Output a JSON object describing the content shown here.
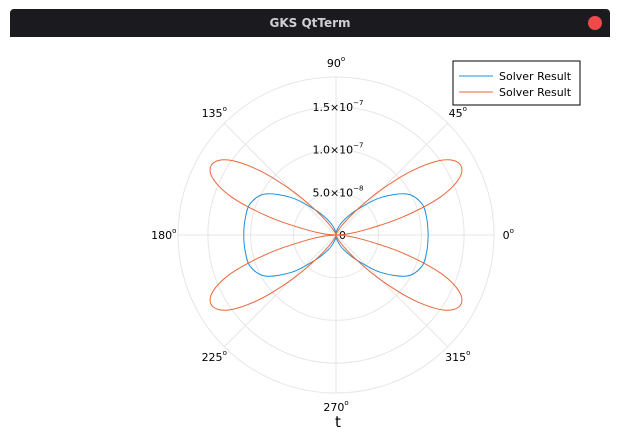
{
  "window": {
    "title": "GKS QtTerm"
  },
  "chart_data": {
    "type": "polar-line",
    "theta_ticks": [
      {
        "deg": 0,
        "label": "0"
      },
      {
        "deg": 45,
        "label": "45"
      },
      {
        "deg": 90,
        "label": "90"
      },
      {
        "deg": 135,
        "label": "135"
      },
      {
        "deg": 180,
        "label": "180"
      },
      {
        "deg": 225,
        "label": "225"
      },
      {
        "deg": 270,
        "label": "270"
      },
      {
        "deg": 315,
        "label": "315"
      }
    ],
    "degree_symbol": "o",
    "r_ticks": [
      {
        "value": 0,
        "mantissa": "0",
        "exponent": ""
      },
      {
        "value": 5e-08,
        "mantissa": "5.0×10",
        "exponent": "−8"
      },
      {
        "value": 1e-07,
        "mantissa": "1.0×10",
        "exponent": "−7"
      },
      {
        "value": 1.5e-07,
        "mantissa": "1.5×10",
        "exponent": "−7"
      }
    ],
    "rlim": [
      0,
      1.85e-07
    ],
    "xlabel": "t",
    "legend_position": "top-right",
    "series": [
      {
        "name": "Solver Result",
        "color": "#1e90d8",
        "theta": [
          0,
          10,
          20,
          30,
          40,
          50,
          60,
          70,
          80,
          90,
          100,
          110,
          120,
          130,
          140,
          150,
          160,
          170,
          180,
          190,
          200,
          210,
          220,
          230,
          240,
          250,
          260,
          270,
          280,
          290,
          300,
          310,
          320,
          330,
          340,
          350,
          360
        ],
        "r": [
          1.08e-07,
          1.08e-07,
          1.07e-07,
          9.6e-08,
          6.8e-08,
          3.9e-08,
          2.2e-08,
          1.2e-08,
          5e-09,
          1e-09,
          5e-09,
          1.2e-08,
          2.2e-08,
          3.9e-08,
          6.8e-08,
          9.6e-08,
          1.07e-07,
          1.08e-07,
          1.08e-07,
          1.08e-07,
          1.07e-07,
          9.6e-08,
          6.8e-08,
          3.9e-08,
          2.2e-08,
          1.2e-08,
          5e-09,
          1e-09,
          5e-09,
          1.2e-08,
          2.2e-08,
          3.9e-08,
          6.8e-08,
          9.6e-08,
          1.07e-07,
          1.08e-07,
          1.08e-07
        ]
      },
      {
        "name": "Solver Result",
        "color": "#e8683a",
        "theta": [
          0,
          5,
          10,
          15,
          20,
          25,
          30,
          35,
          40,
          45,
          50,
          55,
          60,
          70,
          80,
          90,
          100,
          110,
          120,
          125,
          130,
          135,
          140,
          145,
          150,
          155,
          160,
          165,
          170,
          175,
          180,
          185,
          190,
          195,
          200,
          205,
          210,
          215,
          220,
          225,
          230,
          235,
          240,
          250,
          260,
          270,
          280,
          290,
          300,
          305,
          310,
          315,
          320,
          325,
          330,
          335,
          340,
          345,
          350,
          355,
          360
        ],
        "r": [
          0,
          1.2e-08,
          3.5e-08,
          8e-08,
          1.3e-07,
          1.6e-07,
          1.67e-07,
          1.53e-07,
          1.18e-07,
          7.5e-08,
          4e-08,
          2e-08,
          1e-08,
          3e-09,
          1e-09,
          0,
          1e-09,
          3e-09,
          1e-08,
          2e-08,
          4e-08,
          7.5e-08,
          1.18e-07,
          1.53e-07,
          1.67e-07,
          1.6e-07,
          1.3e-07,
          8e-08,
          3.5e-08,
          1.2e-08,
          0,
          1.2e-08,
          3.5e-08,
          8e-08,
          1.3e-07,
          1.6e-07,
          1.67e-07,
          1.53e-07,
          1.18e-07,
          7.5e-08,
          4e-08,
          2e-08,
          1e-08,
          3e-09,
          1e-09,
          0,
          1e-09,
          3e-09,
          1e-08,
          2e-08,
          4e-08,
          7.5e-08,
          1.18e-07,
          1.53e-07,
          1.67e-07,
          1.6e-07,
          1.3e-07,
          8e-08,
          3.5e-08,
          1.2e-08,
          0
        ]
      }
    ]
  }
}
